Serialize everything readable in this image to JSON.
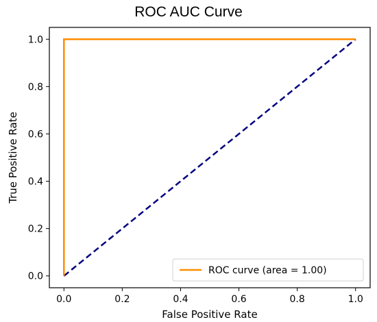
{
  "chart_data": {
    "type": "line",
    "title": "ROC AUC Curve",
    "xlabel": "False Positive Rate",
    "ylabel": "True Positive Rate",
    "xlim": [
      -0.05,
      1.05
    ],
    "ylim": [
      -0.05,
      1.05
    ],
    "xticks": [
      0.0,
      0.2,
      0.4,
      0.6,
      0.8,
      1.0
    ],
    "yticks": [
      0.0,
      0.2,
      0.4,
      0.6,
      0.8,
      1.0
    ],
    "xtick_labels": [
      "0.0",
      "0.2",
      "0.4",
      "0.6",
      "0.8",
      "1.0"
    ],
    "ytick_labels": [
      "0.0",
      "0.2",
      "0.4",
      "0.6",
      "0.8",
      "1.0"
    ],
    "grid": false,
    "legend_position": "lower-right",
    "series": [
      {
        "name": "ROC curve (area = 1.00)",
        "color": "#ff8c00",
        "style": "solid",
        "x": [
          0.0,
          0.0,
          1.0
        ],
        "y": [
          0.0,
          1.0,
          1.0
        ]
      },
      {
        "color": "#000080",
        "style": "dashed",
        "x": [
          0.0,
          1.0
        ],
        "y": [
          0.0,
          1.0
        ]
      }
    ]
  }
}
